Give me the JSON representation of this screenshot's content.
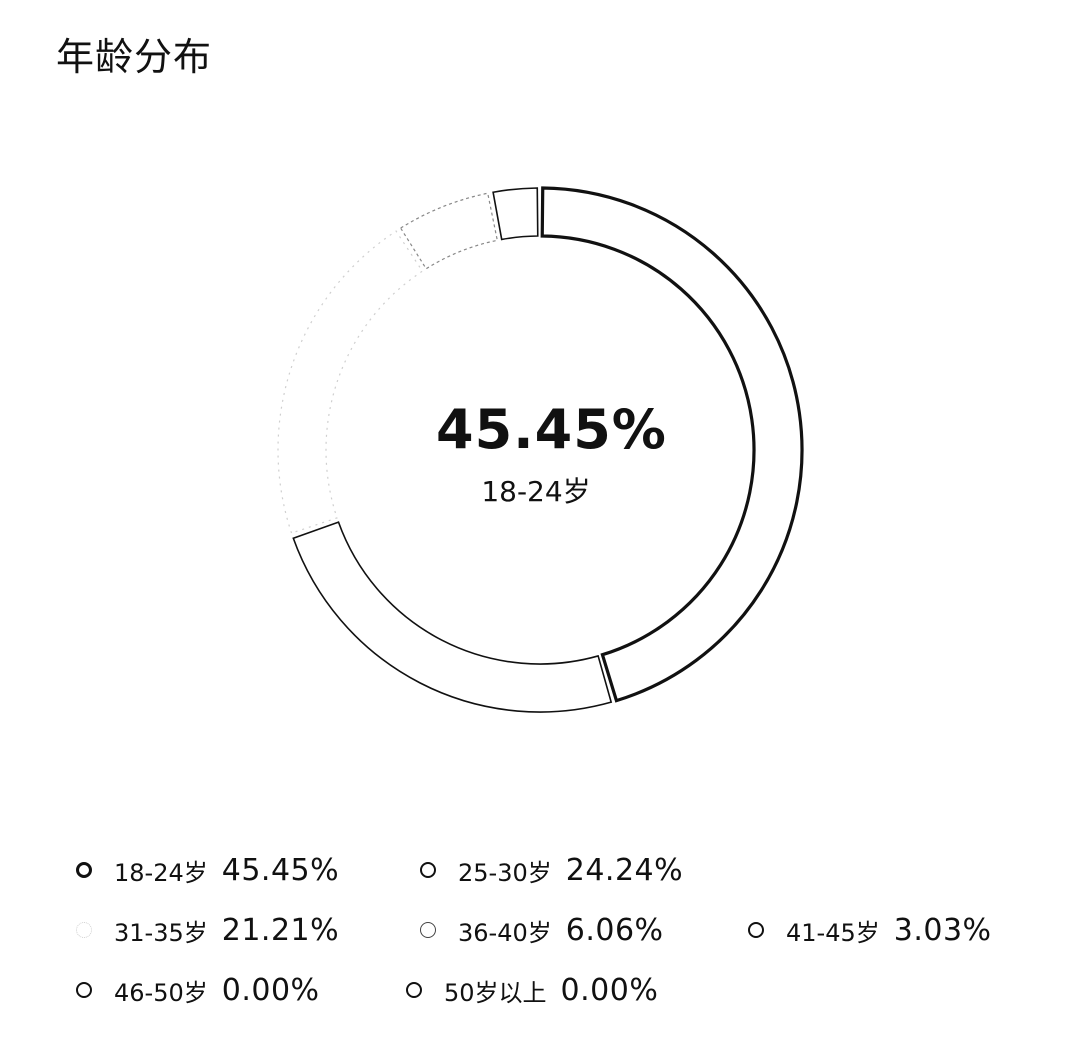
{
  "header": {
    "title": "年龄分布"
  },
  "center": {
    "value": "45.45%",
    "label": "18-24岁"
  },
  "chart_data": {
    "type": "pie",
    "variant": "donut",
    "title": "年龄分布",
    "categories": [
      "18-24岁",
      "25-30岁",
      "31-35岁",
      "36-40岁",
      "41-45岁",
      "46-50岁",
      "50岁以上"
    ],
    "values": [
      45.45,
      24.24,
      21.21,
      6.06,
      3.03,
      0.0,
      0.0
    ],
    "value_labels": [
      "45.45%",
      "24.24%",
      "21.21%",
      "6.06%",
      "3.03%",
      "0.00%",
      "0.00%"
    ],
    "unit": "%",
    "legend_position": "bottom",
    "highlighted_category": "18-24岁"
  },
  "legend": {
    "items": [
      {
        "label": "18-24岁",
        "value": "45.45%",
        "marker": "bold"
      },
      {
        "label": "25-30岁",
        "value": "24.24%",
        "marker": "normal"
      },
      {
        "label": "31-35岁",
        "value": "21.21%",
        "marker": "faint"
      },
      {
        "label": "36-40岁",
        "value": "6.06%",
        "marker": "light"
      },
      {
        "label": "41-45岁",
        "value": "3.03%",
        "marker": "normal"
      },
      {
        "label": "46-50岁",
        "value": "0.00%",
        "marker": "normal"
      },
      {
        "label": "50岁以上",
        "value": "0.00%",
        "marker": "normal"
      }
    ]
  },
  "colors": {
    "stroke": "#111111",
    "background": "#ffffff",
    "faint": "#d0d0d0"
  }
}
